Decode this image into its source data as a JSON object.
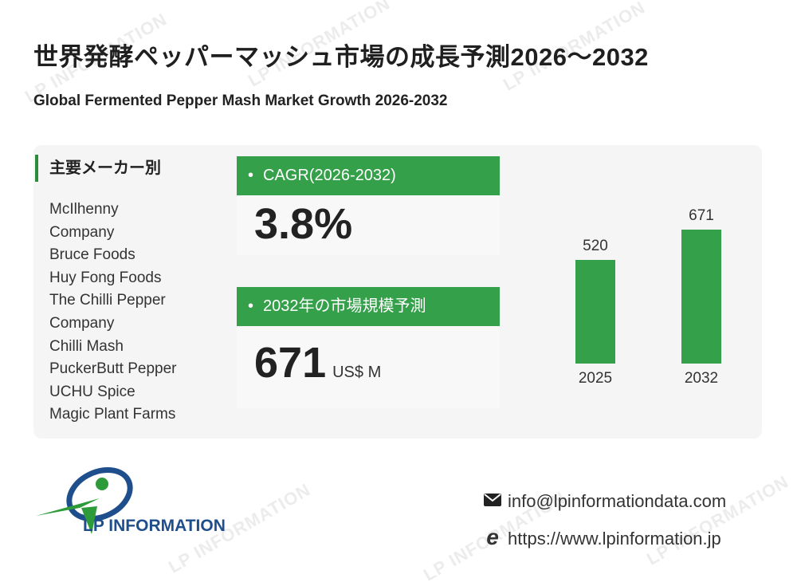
{
  "watermark": "LP INFORMATION",
  "title_ja": "世界発酵ペッパーマッシュ市場の成長予測2026～2032",
  "title_en": "Global Fermented Pepper Mash Market Growth 2026-2032",
  "manufacturers": {
    "heading": "主要メーカー別",
    "items": [
      "McIlhenny",
      "Company",
      "Bruce Foods",
      "Huy Fong Foods",
      "The Chilli Pepper",
      "Company",
      "Chilli Mash",
      "PuckerButt Pepper",
      "UCHU Spice",
      "Magic Plant Farms"
    ]
  },
  "cagr": {
    "label": "CAGR(2026-2032)",
    "value": "3.8%"
  },
  "forecast": {
    "label": "2032年の市場規模予測",
    "value": "671",
    "unit": "US$ M"
  },
  "chart_data": {
    "type": "bar",
    "categories": [
      "2025",
      "2032"
    ],
    "values": [
      520,
      671
    ],
    "color": "#35a04a"
  },
  "logo": {
    "text": "LP INFORMATION"
  },
  "contact": {
    "email": "info@lpinformationdata.com",
    "url": "https://www.lpinformation.jp",
    "email_icon": "mail-icon",
    "web_icon": "browser-icon"
  },
  "colors": {
    "accent": "#35a04a",
    "panel": "#f5f5f5"
  }
}
